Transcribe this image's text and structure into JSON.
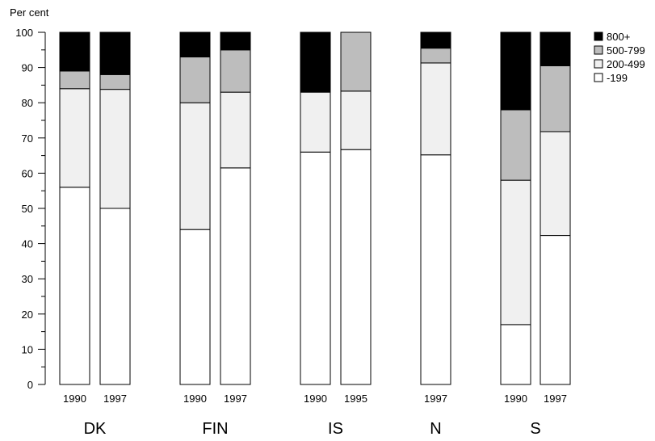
{
  "chart_data": {
    "type": "bar",
    "stacked": true,
    "ylabel": "Per cent",
    "ylim": [
      0,
      100
    ],
    "yticks": [
      0,
      10,
      20,
      30,
      40,
      50,
      60,
      70,
      80,
      90,
      100
    ],
    "grid": false,
    "legend_position": "top-right",
    "series": [
      {
        "name": "-199",
        "color": "#ffffff"
      },
      {
        "name": "200-499",
        "color": "#f0f0f0"
      },
      {
        "name": "500-799",
        "color": "#bdbdbd"
      },
      {
        "name": "800+",
        "color": "#000000"
      }
    ],
    "legend_order": [
      "800+",
      "500-799",
      "200-499",
      "-199"
    ],
    "groups": [
      {
        "country": "DK",
        "bars": [
          {
            "year": "1990",
            "values": [
              56,
              28,
              5,
              11
            ]
          },
          {
            "year": "1997",
            "values": [
              50,
              33.8,
              4.2,
              12
            ]
          }
        ]
      },
      {
        "country": "FIN",
        "bars": [
          {
            "year": "1990",
            "values": [
              44,
              36,
              13,
              7
            ]
          },
          {
            "year": "1997",
            "values": [
              61.5,
              21.5,
              12,
              5
            ]
          }
        ]
      },
      {
        "country": "IS",
        "bars": [
          {
            "year": "1990",
            "values": [
              66,
              17,
              0,
              17
            ]
          },
          {
            "year": "1995",
            "values": [
              66.7,
              16.6,
              16.7,
              0
            ]
          }
        ]
      },
      {
        "country": "N",
        "bars": [
          {
            "year": "1997",
            "values": [
              65.2,
              26.1,
              4.2,
              4.5
            ]
          }
        ]
      },
      {
        "country": "S",
        "bars": [
          {
            "year": "1990",
            "values": [
              17,
              41,
              20,
              22
            ]
          },
          {
            "year": "1997",
            "values": [
              42.3,
              29.5,
              18.7,
              9.5
            ]
          }
        ]
      }
    ]
  }
}
